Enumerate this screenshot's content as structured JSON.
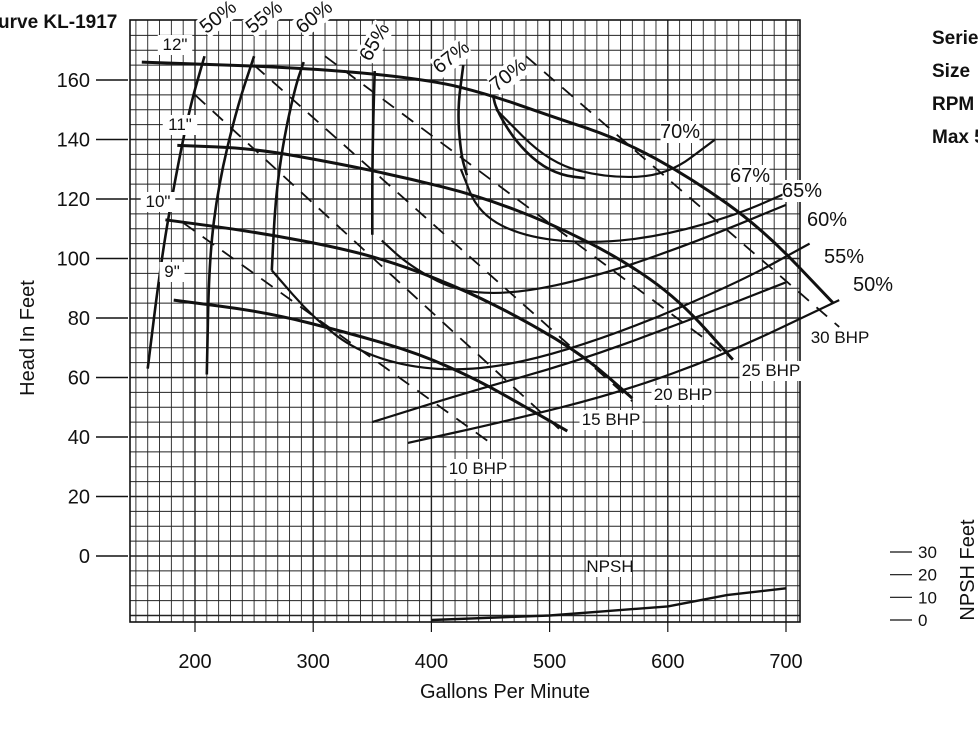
{
  "title": "urve KL-1917",
  "side_labels": [
    "Serie",
    "Size",
    "RPM",
    "Max 5"
  ],
  "colors": {
    "ink": "#111111",
    "grid": "#222222",
    "background": "#ffffff"
  },
  "chart_data": {
    "type": "line",
    "title": "urve KL-1917",
    "xlabel": "Gallons Per Minute",
    "ylabel": "Head In Feet",
    "y2label": "NPSH Feet",
    "xlim": [
      130,
      750
    ],
    "ylim": [
      -20,
      170
    ],
    "x_ticks": [
      200,
      300,
      400,
      500,
      600,
      700
    ],
    "y_ticks": [
      160,
      140,
      120,
      100,
      80,
      60,
      40,
      20,
      0
    ],
    "npsh_ticks": [
      30,
      20,
      10,
      0
    ],
    "grid": true,
    "impeller_curves": [
      {
        "name": "12\"",
        "x": [
          155,
          300,
          400,
          450,
          500,
          560,
          620,
          680,
          740
        ],
        "y": [
          166,
          164,
          160,
          155,
          148,
          140,
          127,
          110,
          85
        ]
      },
      {
        "name": "11\"",
        "x": [
          185,
          250,
          320,
          380,
          440,
          500,
          560,
          610,
          655
        ],
        "y": [
          138,
          137,
          132,
          127,
          121,
          112,
          100,
          86,
          66
        ]
      },
      {
        "name": "10\"",
        "x": [
          175,
          250,
          330,
          380,
          430,
          480,
          530,
          570
        ],
        "y": [
          113,
          109,
          103,
          97,
          89,
          79,
          67,
          53
        ]
      },
      {
        "name": "9\"",
        "x": [
          182,
          260,
          330,
          390,
          440,
          480,
          515
        ],
        "y": [
          86,
          82,
          75,
          68,
          59,
          50,
          42
        ]
      }
    ],
    "efficiency_curves": [
      {
        "name": "50%",
        "x": [
          160,
          170,
          180,
          195,
          208
        ],
        "y": [
          63,
          95,
          120,
          150,
          168
        ]
      },
      {
        "name": "55%",
        "x": [
          210,
          212,
          220,
          235,
          250
        ],
        "y": [
          61,
          100,
          125,
          150,
          168
        ]
      },
      {
        "name": "60%",
        "x": [
          265,
          268,
          275,
          285,
          292
        ],
        "y": [
          96,
          120,
          140,
          158,
          166
        ]
      },
      {
        "name": "65%",
        "x": [
          350,
          350,
          351,
          352
        ],
        "y": [
          108,
          130,
          150,
          163
        ]
      },
      {
        "name": "67%",
        "x": [
          427,
          422,
          425,
          430
        ],
        "y": [
          165,
          150,
          135,
          128
        ]
      },
      {
        "name": "70%",
        "x": [
          452,
          455,
          470,
          490,
          510,
          530
        ],
        "y": [
          155,
          150,
          140,
          132,
          128,
          127
        ]
      }
    ],
    "bhp_lines": [
      {
        "name": "10 BHP",
        "x": [
          190,
          450
        ],
        "y": [
          112,
          38
        ]
      },
      {
        "name": "15 BHP",
        "x": [
          200,
          510
        ],
        "y": [
          155,
          42
        ]
      },
      {
        "name": "20 BHP",
        "x": [
          250,
          570
        ],
        "y": [
          165,
          52
        ]
      },
      {
        "name": "25 BHP",
        "x": [
          310,
          655
        ],
        "y": [
          168,
          66
        ]
      },
      {
        "name": "30 BHP",
        "x": [
          480,
          745
        ],
        "y": [
          168,
          77
        ]
      }
    ],
    "npsh_curve": {
      "name": "NPSH",
      "x": [
        400,
        500,
        550,
        600,
        650,
        700
      ],
      "y": [
        0,
        2,
        4,
        6,
        11,
        14
      ]
    },
    "labels": {
      "impeller": [
        "12\"",
        "11\"",
        "10\"",
        "9\""
      ],
      "efficiency_top": [
        "50%",
        "55%",
        "60%",
        "65%",
        "67%",
        "70%"
      ],
      "efficiency_right": [
        "70%",
        "67%",
        "65%",
        "60%",
        "55%",
        "50%"
      ],
      "bhp": [
        "10 BHP",
        "15 BHP",
        "20 BHP",
        "25 BHP",
        "30 BHP"
      ],
      "npsh": "NPSH"
    }
  }
}
